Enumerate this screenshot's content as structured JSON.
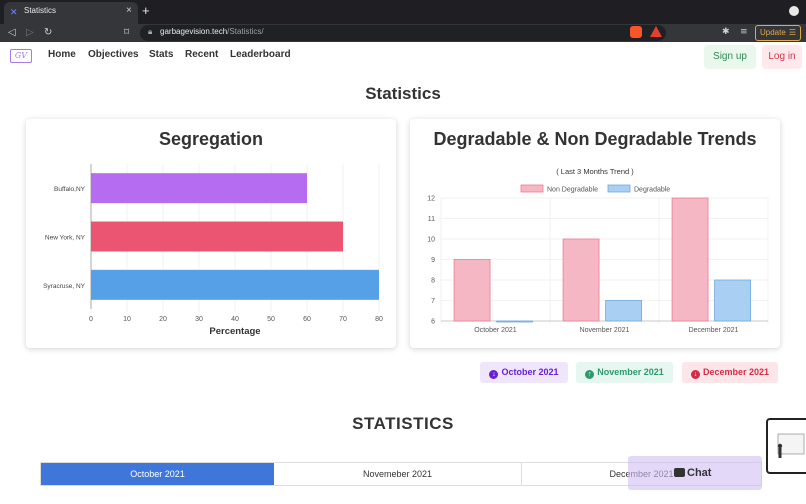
{
  "browser": {
    "tab_title": "Statistics",
    "tab_close": "×",
    "new_tab": "+",
    "url_host": "garbagevision.tech",
    "url_path": "/Statistics/",
    "update_label": "Update"
  },
  "nav": {
    "logo_text": "GV",
    "links": [
      "Home",
      "Objectives",
      "Stats",
      "Recent",
      "Leaderboard"
    ],
    "signup": "Sign up",
    "login": "Log in"
  },
  "page_title": "Statistics",
  "segregation": {
    "title": "Segregation"
  },
  "trends": {
    "title": "Degradable & Non Degradable Trends"
  },
  "chart_data": [
    {
      "type": "bar",
      "orientation": "horizontal",
      "title": "",
      "categories": [
        "Buffalo,NY",
        "New York, NY",
        "Syracruse, NY"
      ],
      "values": [
        60,
        70,
        80
      ],
      "colors": [
        "#b56cf0",
        "#ec5571",
        "#55a0e6"
      ],
      "xlabel": "Percentage",
      "ylabel": "",
      "xlim": [
        0,
        80
      ],
      "xticks": [
        0,
        10,
        20,
        30,
        40,
        50,
        60,
        70,
        80
      ]
    },
    {
      "type": "bar",
      "subtitle": "( Last 3 Months Trend )",
      "categories": [
        "October 2021",
        "November 2021",
        "December 2021"
      ],
      "series": [
        {
          "name": "Non Degradable",
          "values": [
            9,
            10,
            12
          ],
          "fill": "#f6b7c4",
          "stroke": "#ec7c93"
        },
        {
          "name": "Degradable",
          "values": [
            6,
            7,
            8
          ],
          "fill": "#a9cff2",
          "stroke": "#6fa8dc"
        }
      ],
      "ylim": [
        6,
        12
      ],
      "yticks": [
        6,
        7,
        8,
        9,
        10,
        11,
        12
      ],
      "legend": "top",
      "grid": true
    }
  ],
  "month_pills": [
    {
      "label": "October 2021",
      "color": "#6a1fd0",
      "bg": "#efe6fb",
      "icon": "arrow-down-circle-icon"
    },
    {
      "label": "November 2021",
      "color": "#2e9a6b",
      "bg": "#e6f6f0",
      "icon": "arrow-up-circle-icon"
    },
    {
      "label": "December 2021",
      "color": "#d42c45",
      "bg": "#fde6ea",
      "icon": "arrow-down-circle-icon"
    }
  ],
  "section_title": "STATISTICS",
  "month_tabs": [
    "October 2021",
    "Novemeber 2021",
    "December 2021"
  ],
  "chat_label": "Chat"
}
